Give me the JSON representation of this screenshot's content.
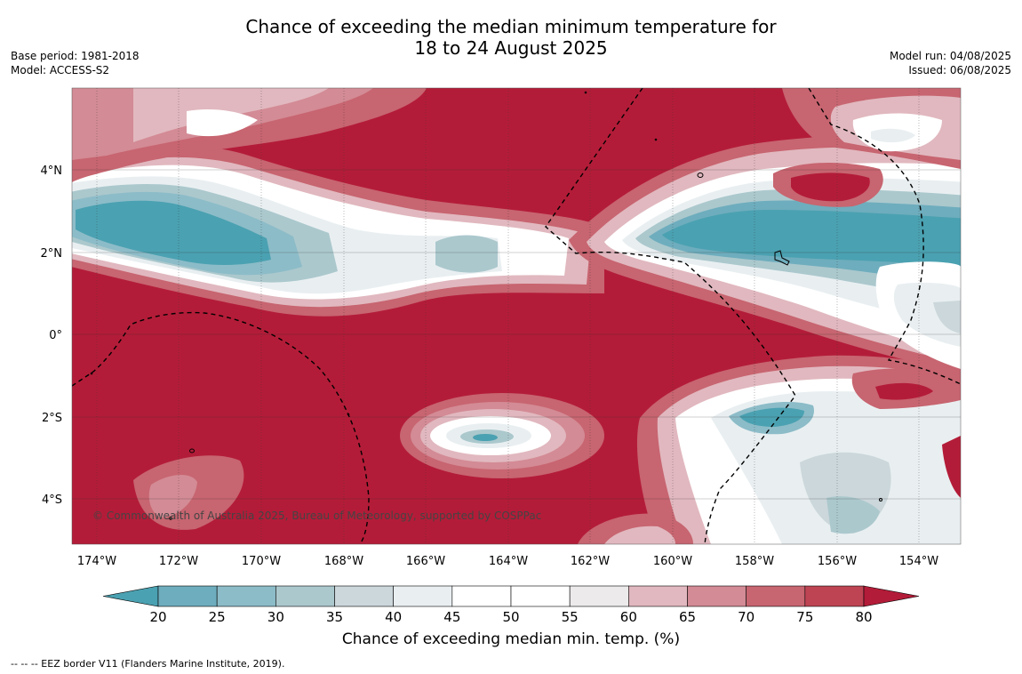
{
  "title": {
    "line1": "Chance of exceeding the median minimum temperature for",
    "line2": "18 to 24 August 2025"
  },
  "meta_left": {
    "base_period": "Base period: 1981-2018",
    "model": "Model: ACCESS-S2"
  },
  "meta_right": {
    "model_run": "Model run: 04/08/2025",
    "issued": "Issued: 06/08/2025"
  },
  "map": {
    "lon_ticks": [
      "174°W",
      "172°W",
      "170°W",
      "168°W",
      "166°W",
      "164°W",
      "162°W",
      "160°W",
      "158°W",
      "156°W",
      "154°W"
    ],
    "lat_ticks": [
      "4°N",
      "2°N",
      "0°",
      "2°S",
      "4°S"
    ],
    "copyright": "© Commonwealth of Australia 2025, Bureau of Meteorology, supported by COSPPac",
    "extent": {
      "lon_min": -174.6,
      "lon_max": -153.0,
      "lat_min": -5.2,
      "lat_max": 5.9
    }
  },
  "colorbar": {
    "ticks": [
      "20",
      "25",
      "30",
      "35",
      "40",
      "45",
      "50",
      "55",
      "60",
      "65",
      "70",
      "75",
      "80"
    ],
    "colors": [
      "#4aa1b1",
      "#6eadbd",
      "#8cbcc8",
      "#abc8cd",
      "#cbd7db",
      "#e9eff1",
      "#ffffff",
      "#ffffff",
      "#eceaeb",
      "#e1b8bf",
      "#d38b95",
      "#c76570",
      "#be4453",
      "#b31c38"
    ],
    "label": "Chance of exceeding median min. temp. (%)"
  },
  "palette": {
    "red_dark": "#b31c38",
    "teal": "#4aa1b1"
  },
  "footer": "--  --  -- EEZ border V11 (Flanders Marine Institute, 2019)."
}
